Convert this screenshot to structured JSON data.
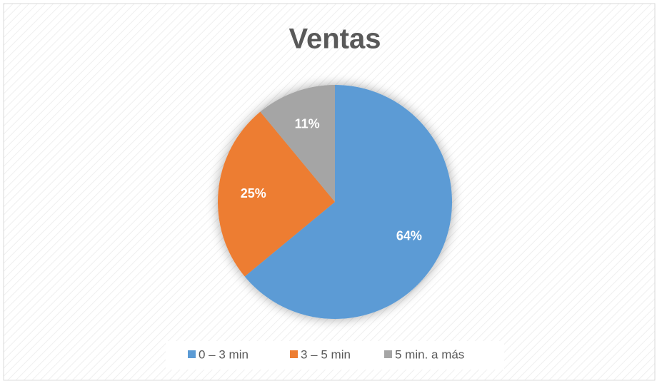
{
  "chart_data": {
    "type": "pie",
    "title": "Ventas",
    "categories": [
      "0 – 3 min",
      "3 – 5 min",
      "5 min. a más"
    ],
    "values": [
      64,
      25,
      11
    ],
    "value_labels": [
      "64%",
      "25%",
      "11%"
    ],
    "colors": [
      "#5b9bd5",
      "#ed7d31",
      "#a5a5a5"
    ],
    "legend": "bottom"
  }
}
